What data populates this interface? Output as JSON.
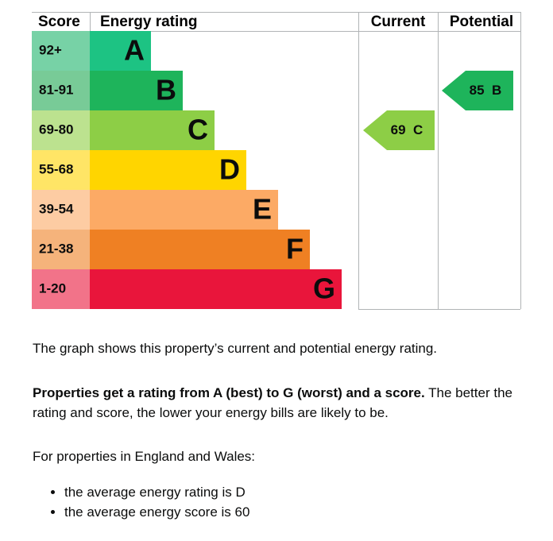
{
  "epc": {
    "headers": {
      "score": "Score",
      "rating": "Energy rating",
      "current": "Current",
      "potential": "Potential"
    },
    "bands": [
      {
        "range": "92+",
        "letter": "A",
        "color": "#1dc383",
        "score_color": "#77d2a6"
      },
      {
        "range": "81-91",
        "letter": "B",
        "color": "#1eb45b",
        "score_color": "#78cb97"
      },
      {
        "range": "69-80",
        "letter": "C",
        "color": "#8dce46",
        "score_color": "#bce28f"
      },
      {
        "range": "55-68",
        "letter": "D",
        "color": "#ffd500",
        "score_color": "#ffe566"
      },
      {
        "range": "39-54",
        "letter": "E",
        "color": "#fcaa65",
        "score_color": "#fdcca3"
      },
      {
        "range": "21-38",
        "letter": "F",
        "color": "#ef8023",
        "score_color": "#f5b37b"
      },
      {
        "range": "1-20",
        "letter": "G",
        "color": "#e9153b",
        "score_color": "#f27389"
      }
    ],
    "current": {
      "score": 69,
      "rating": "C"
    },
    "potential": {
      "score": 85,
      "rating": "B"
    }
  },
  "text": {
    "intro": "The graph shows this property’s current and potential energy rating.",
    "explain_bold": "Properties get a rating from A (best) to G (worst) and a score.",
    "explain_rest": " The better the rating and score, the lower your energy bills are likely to be.",
    "region": "For properties in England and Wales:",
    "bullets": [
      "the average energy rating is D",
      "the average energy score is 60"
    ]
  }
}
